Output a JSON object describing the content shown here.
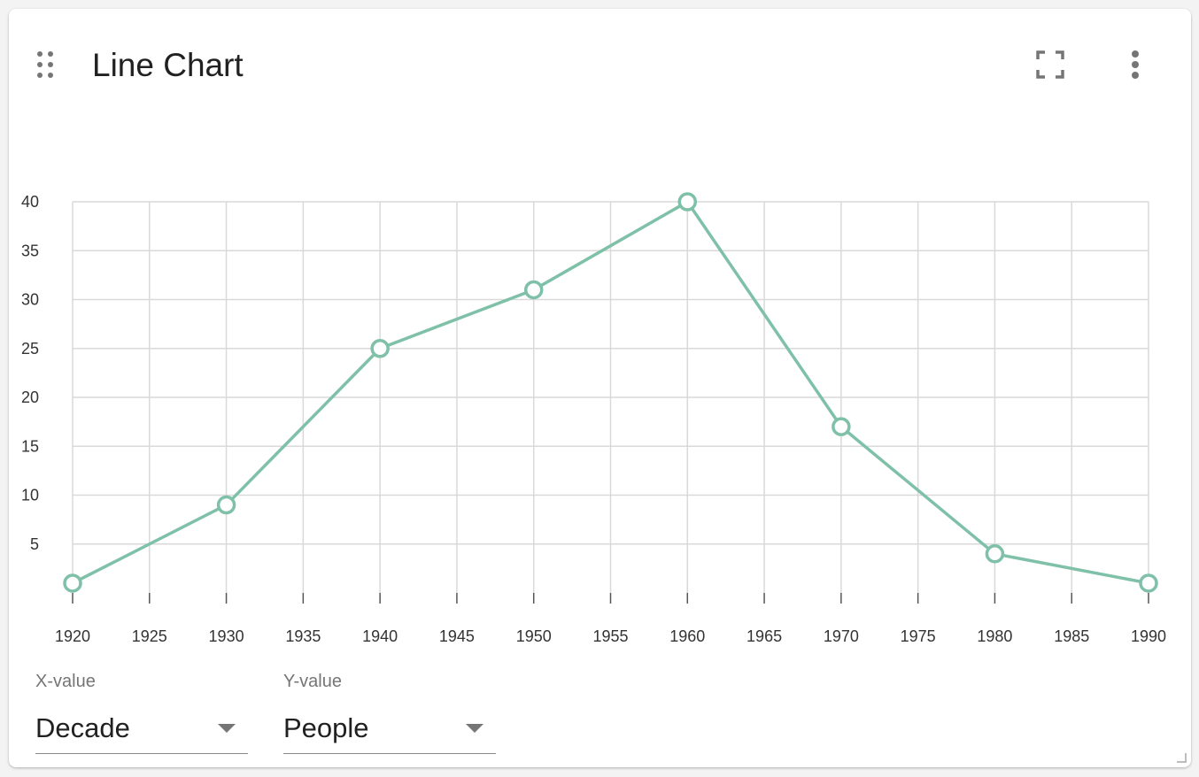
{
  "card": {
    "title": "Line Chart",
    "drag_icon": "drag-handle-icon",
    "fullscreen_icon": "fullscreen-icon",
    "menu_icon": "more-vert-icon"
  },
  "controls": {
    "x_label": "X-value",
    "x_value": "Decade",
    "y_label": "Y-value",
    "y_value": "People"
  },
  "colors": {
    "series": "#7fc0a8",
    "grid": "#d9d9d9",
    "text": "#212121",
    "muted": "#757575"
  },
  "chart_data": {
    "type": "line",
    "x": [
      1920,
      1930,
      1940,
      1950,
      1960,
      1970,
      1980,
      1990
    ],
    "series": [
      {
        "values": [
          1,
          9,
          25,
          31,
          40,
          17,
          4,
          1
        ]
      }
    ],
    "xlim": [
      1920,
      1990
    ],
    "ylim": [
      0,
      40
    ],
    "x_ticks": [
      1920,
      1925,
      1930,
      1935,
      1940,
      1945,
      1950,
      1955,
      1960,
      1965,
      1970,
      1975,
      1980,
      1985,
      1990
    ],
    "y_ticks": [
      5,
      10,
      15,
      20,
      25,
      30,
      35,
      40
    ],
    "grid": true,
    "legend": "none"
  }
}
